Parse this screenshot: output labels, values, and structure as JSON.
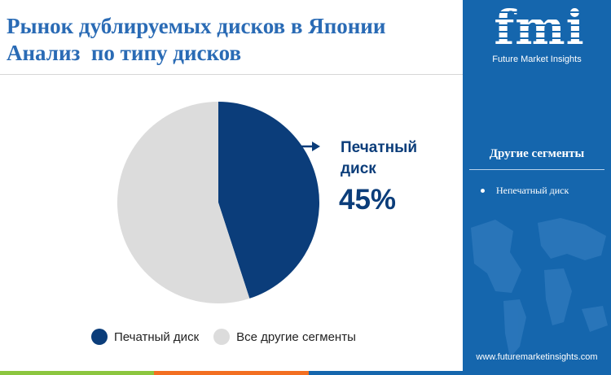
{
  "title": {
    "line1": "Рынок дублируемых дисков в Японии",
    "line2": "Анализ  по типу дисков"
  },
  "chart_data": {
    "type": "pie",
    "categories": [
      "Печатный диск",
      "Все другие сегменты"
    ],
    "values": [
      45,
      55
    ],
    "unit": "%",
    "colors": [
      "#0b3d7a",
      "#dcdcdc"
    ],
    "callout": {
      "label": "Печатный диск",
      "value": "45%"
    },
    "legend_position": "bottom"
  },
  "legend": [
    {
      "label": "Печатный диск",
      "color": "#0b3d7a"
    },
    {
      "label": "Все другие сегменты",
      "color": "#dcdcdc"
    }
  ],
  "sidebar": {
    "logo": "fmi",
    "logo_caption": "Future Market Insights",
    "heading": "Другие сегменты",
    "items": [
      "Непечатный диск"
    ],
    "url": "www.futuremarketinsights.com",
    "background": "#1566ad"
  },
  "bottom_bar_colors": [
    "#8cc63f",
    "#f36f21",
    "#1566ad"
  ]
}
